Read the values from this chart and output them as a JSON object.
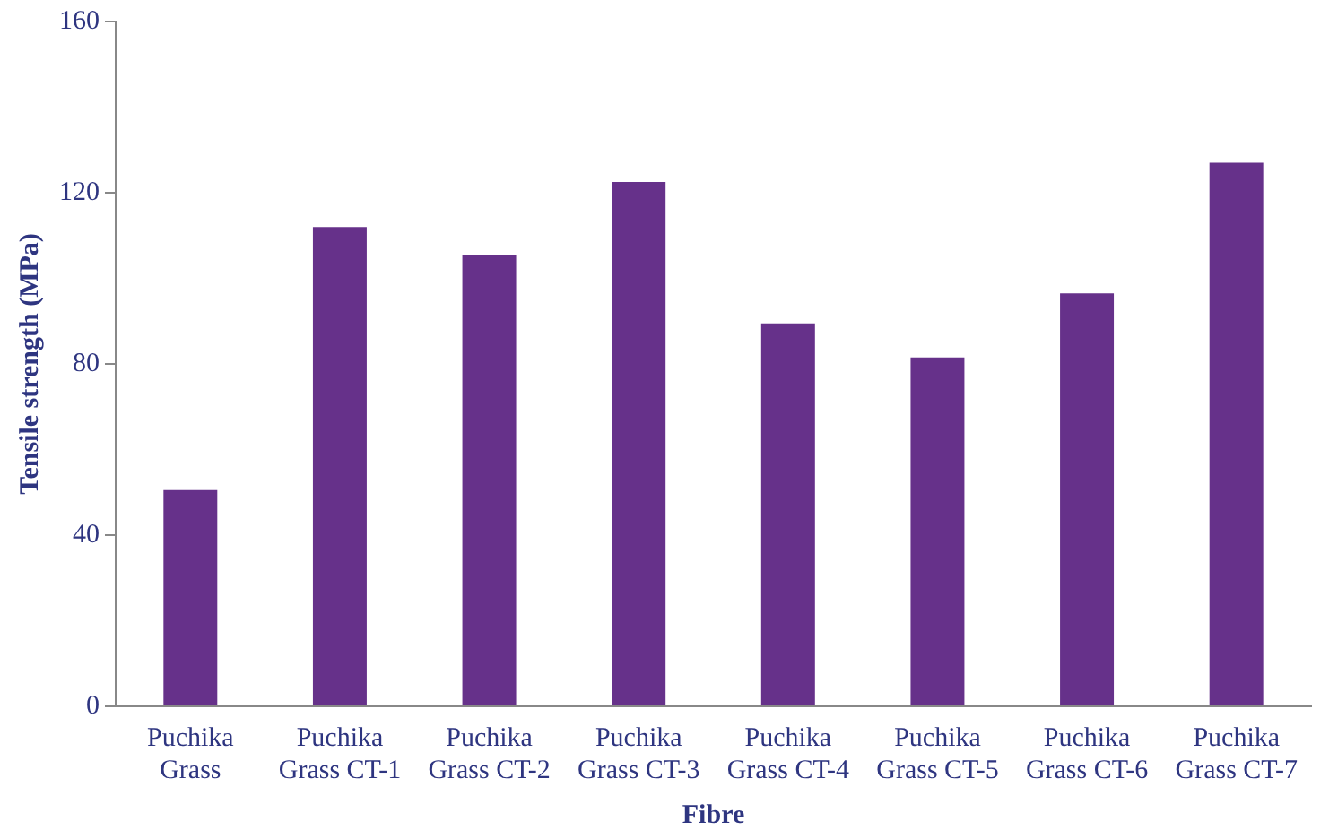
{
  "chart_data": {
    "type": "bar",
    "xlabel": "Fibre",
    "ylabel": "Tensile strength (MPa)",
    "categories": [
      "Puchika Grass",
      "Puchika Grass CT-1",
      "Puchika Grass CT-2",
      "Puchika Grass CT-3",
      "Puchika Grass CT-4",
      "Puchika Grass CT-5",
      "Puchika Grass CT-6",
      "Puchika Grass CT-7"
    ],
    "values": [
      50.5,
      112,
      105.5,
      122.5,
      89.5,
      81.5,
      96.5,
      127
    ],
    "color": "#66318a",
    "ylim": [
      0,
      160
    ],
    "yticks": [
      0,
      40,
      80,
      120,
      160
    ],
    "grid": false,
    "legend": false
  }
}
